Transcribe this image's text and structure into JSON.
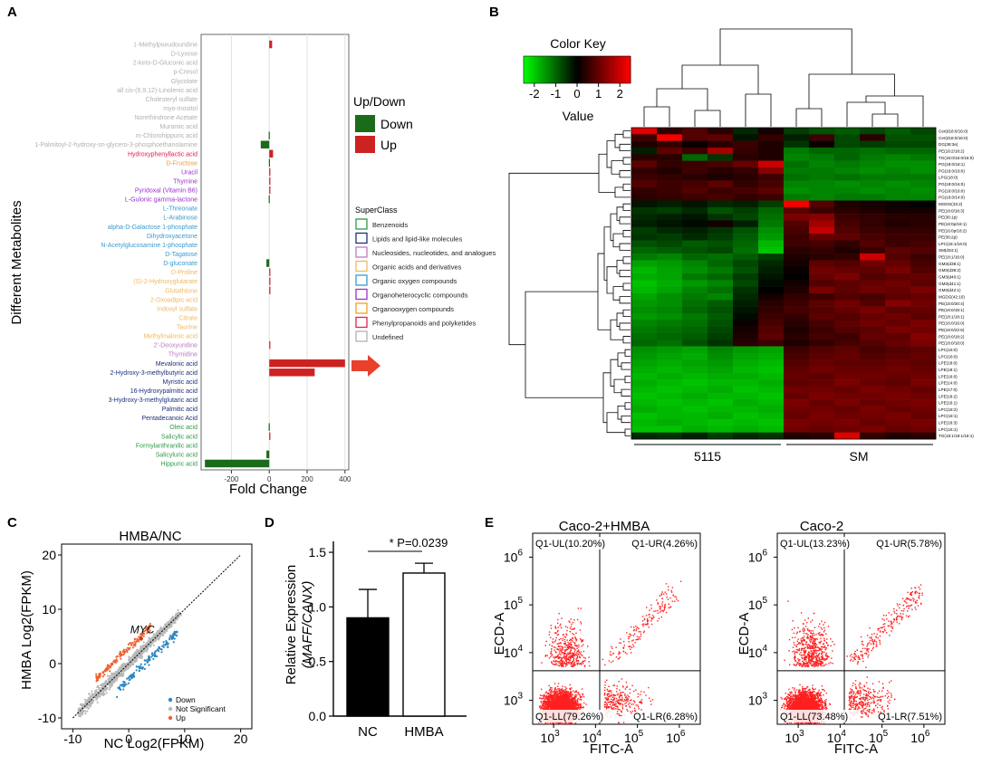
{
  "panels": {
    "a": "A",
    "b": "B",
    "c": "C",
    "d": "D",
    "e": "E"
  },
  "colors": {
    "down": "#1a6b1a",
    "up": "#cc2222",
    "arrow": "#e8402a",
    "scatter_down": "#2e86c1",
    "scatter_ns": "#b8b8b8",
    "scatter_up": "#f06030",
    "flow_dot": "#ff2020"
  },
  "chart_data": [
    {
      "id": "A",
      "type": "bar",
      "orientation": "horizontal",
      "xlabel": "Fold Change",
      "ylabel": "Different Metabolites",
      "xlim": [
        -360,
        420
      ],
      "xticks": [
        -200,
        0,
        200,
        400
      ],
      "categories": [
        "1-Methylpseudouridine",
        "D-Lyxose",
        "2-keto-D-Gluconic acid",
        "p-Cresol",
        "Glycolate",
        "all cis-(6,9,12)-Linolenic acid",
        "Cholesteryl sulfate",
        "myo-Inositol",
        "Norethindrone Acetate",
        "Muramic acid",
        "m-Chlorohippuric acid",
        "1-Palmitoyl-2-hydroxy-sn-glycero-3-phosphoethanolamine",
        "Hydroxyphenyllactic acid",
        "D-Fructose",
        "Uracil",
        "Thymine",
        "Pyridoxal (Vitamin B6)",
        "L-Gulonic gamma-lactone",
        "L-Threonate",
        "L-Arabinose",
        "alpha-D-Galactose 1-phosphate",
        "Dihydroxyacetone",
        "N-Acetylglucosamine 1-phosphate",
        "D-Tagatose",
        "D-gluconate",
        "D-Proline",
        "(S)-2-Hydroxyglutarate",
        "Glutathione",
        "2-Oxoadipic acid",
        "Indoxyl sulfate",
        "Citrate",
        "Taurine",
        "Methylmalonic acid",
        "2'-Deoxyuridine",
        "Thymidine",
        "Mevalonic acid",
        "2-Hydroxy-3-methylbutyric acid",
        "Myristic acid",
        "16-Hydroxypalmitic acid",
        "3-Hydroxy-3-methylglutaric acid",
        "Palmitic acid",
        "Pentadecanoic Acid",
        "Oleic acid",
        "Salicylic acid",
        "Formylanthranilic acid",
        "Salicyluric acid",
        "Hippuric acid"
      ],
      "values": [
        15,
        0,
        0,
        0,
        0,
        0,
        0,
        0,
        0,
        0,
        -3,
        -45,
        20,
        -2,
        4,
        4,
        3,
        -3,
        0,
        0,
        0,
        0,
        0,
        0,
        -15,
        3,
        3,
        3,
        0,
        0,
        0,
        0,
        0,
        2,
        0,
        400,
        240,
        0,
        0,
        0,
        0,
        0,
        -3,
        3,
        0,
        -15,
        -340
      ],
      "superclass": [
        "Undefined",
        "Undefined",
        "Undefined",
        "Undefined",
        "Undefined",
        "Undefined",
        "Undefined",
        "Undefined",
        "Undefined",
        "Undefined",
        "Undefined",
        "Undefined",
        "Phenylpropanoids and polyketides",
        "Organooxygen compounds",
        "Organoheterocyclic compounds",
        "Organoheterocyclic compounds",
        "Organoheterocyclic compounds",
        "Organoheterocyclic compounds",
        "Organic oxygen compounds",
        "Organic oxygen compounds",
        "Organic oxygen compounds",
        "Organic oxygen compounds",
        "Organic oxygen compounds",
        "Organic oxygen compounds",
        "Organic oxygen compounds",
        "Organic acids and derivatives",
        "Organic acids and derivatives",
        "Organic acids and derivatives",
        "Organic acids and derivatives",
        "Organic acids and derivatives",
        "Organic acids and derivatives",
        "Organic acids and derivatives",
        "Organic acids and derivatives",
        "Nucleosides, nucleotides, and analogues",
        "Nucleosides, nucleotides, and analogues",
        "Lipids and lipid-like molecules",
        "Lipids and lipid-like molecules",
        "Lipids and lipid-like molecules",
        "Lipids and lipid-like molecules",
        "Lipids and lipid-like molecules",
        "Lipids and lipid-like molecules",
        "Lipids and lipid-like molecules",
        "Benzenoids",
        "Benzenoids",
        "Benzenoids",
        "Benzenoids",
        "Benzenoids"
      ],
      "legend_updown": {
        "title": "Up/Down",
        "items": [
          "Down",
          "Up"
        ]
      },
      "legend_superclass": {
        "title": "SuperClass",
        "items": [
          "Benzenoids",
          "Lipids and lipid-like molecules",
          "Nucleosides, nucleotides, and analogues",
          "Organic acids and derivatives",
          "Organic oxygen compounds",
          "Organoheterocyclic compounds",
          "Organooxygen compounds",
          "Phenylpropanoids and polyketides",
          "Undefined"
        ],
        "colors": [
          "#2e9a44",
          "#1f2f7a",
          "#c07ac0",
          "#f0b860",
          "#3a9ad0",
          "#9a30d0",
          "#f0a020",
          "#e02050",
          "#b0b0b0"
        ]
      }
    },
    {
      "id": "B",
      "type": "heatmap",
      "color_key_title": "Color Key",
      "color_key_label": "Value",
      "color_key_ticks": [
        "-2",
        "-1",
        "0",
        "1",
        "2"
      ],
      "groups": [
        "5115",
        "SM"
      ],
      "rows": [
        "Cer(d18:0/16:0)",
        "Cer(d18:0/16:0)",
        "DG(38:3e)",
        "PE(18:2/18:2)",
        "TG(16:0/16:0/16:0)",
        "PG(18:0/18:1)",
        "PG(16:0/18:0)",
        "LPG(18:0)",
        "PG(18:0/16:0)",
        "PG(16:0/16:0)",
        "PG(16:0/14:0)",
        "MGDG(33:2)",
        "PE(18:0/18:3)",
        "PE(36:1p)",
        "PE(18:0p/18:1)",
        "PE(16:0p/18:2)",
        "PE(36:2p)",
        "LPC(18:1/16:0)",
        "SM(d34:1)",
        "PE(18:1/16:0)",
        "GM3(d38:1)",
        "GM3(d38:2)",
        "GM3(d40:1)",
        "GM3(d41:1)",
        "GM3(d42:1)",
        "MGDG(42:10)",
        "PE(18:0/20:4)",
        "PE(16:0/18:1)",
        "PE(18:1/18:1)",
        "PE(16:0/16:0)",
        "PE(18:0/22:6)",
        "PE(18:0/18:2)",
        "PE(18:0/18:0)",
        "LPC(16:0)",
        "LPC(18:0)",
        "LPE(18:0)",
        "LPE(18:1)",
        "LPE(16:0)",
        "LPE(14:0)",
        "LPE(17:0)",
        "LPE(18:2)",
        "LPE(16:1)",
        "LPC(18:2)",
        "LPC(18:1)",
        "LPE(18:3)",
        "LPC(16:1)",
        "TG(18:1/18:1/18:1)"
      ],
      "values": [
        [
          2.2,
          0.5,
          0.8,
          0.4,
          -0.4,
          0.2,
          -0.6,
          -0.8,
          -0.9,
          -0.7,
          -0.9,
          -0.7
        ],
        [
          0.6,
          2.4,
          0.8,
          0.9,
          -0.2,
          0.5,
          -0.3,
          0.6,
          -0.7,
          0.4,
          -0.8,
          -0.8
        ],
        [
          0.3,
          0.5,
          0.1,
          0.4,
          0.6,
          0.3,
          -0.5,
          0.1,
          -0.7,
          -0.6,
          -0.7,
          -0.7
        ],
        [
          -0.3,
          0.9,
          0.6,
          1.6,
          0.5,
          0.3,
          -1.2,
          -1.0,
          -1.0,
          -1.1,
          -1.0,
          -1.0
        ],
        [
          0.4,
          0.4,
          -1.0,
          -0.5,
          0.4,
          0.3,
          -1.3,
          -1.2,
          -1.0,
          -1.2,
          -1.3,
          -1.2
        ],
        [
          0.9,
          0.5,
          0.6,
          0.7,
          1.0,
          2.0,
          -1.1,
          -1.3,
          -1.2,
          -1.3,
          -1.4,
          -1.4
        ],
        [
          0.5,
          0.3,
          0.6,
          0.4,
          0.5,
          1.3,
          -1.2,
          -1.2,
          -1.3,
          -1.4,
          -1.3,
          -1.4
        ],
        [
          0.6,
          0.5,
          0.4,
          0.3,
          0.4,
          0.6,
          -1.1,
          -1.2,
          -1.1,
          -1.2,
          -1.2,
          -1.2
        ],
        [
          0.8,
          0.6,
          0.7,
          0.9,
          0.5,
          0.7,
          -1.3,
          -1.3,
          -1.4,
          -1.3,
          -1.4,
          -1.3
        ],
        [
          0.5,
          0.6,
          0.8,
          0.6,
          0.7,
          0.9,
          -1.4,
          -1.3,
          -1.3,
          -1.4,
          -1.3,
          -1.4
        ],
        [
          0.4,
          0.5,
          0.6,
          0.7,
          0.5,
          0.6,
          -1.2,
          -1.3,
          -1.2,
          -1.2,
          -1.3,
          -1.3
        ],
        [
          -0.2,
          -0.3,
          -0.2,
          -0.4,
          -0.3,
          -0.6,
          2.4,
          0.8,
          0.3,
          0.2,
          0.1,
          0.0
        ],
        [
          -0.5,
          -0.6,
          -0.4,
          -0.8,
          -0.6,
          -1.0,
          0.9,
          0.6,
          0.4,
          0.3,
          0.2,
          0.2
        ],
        [
          -0.4,
          -0.3,
          -0.2,
          -0.5,
          -0.7,
          -1.1,
          1.2,
          1.3,
          0.6,
          0.5,
          0.4,
          0.4
        ],
        [
          -0.3,
          -0.2,
          -0.1,
          0.2,
          -0.3,
          -1.2,
          0.8,
          1.6,
          0.7,
          0.5,
          0.3,
          0.4
        ],
        [
          -0.6,
          -0.4,
          -0.3,
          -0.5,
          -0.8,
          -1.4,
          0.7,
          1.9,
          0.8,
          0.6,
          0.5,
          0.5
        ],
        [
          -0.5,
          -0.6,
          -0.4,
          -0.6,
          -0.9,
          -1.5,
          0.6,
          1.0,
          0.9,
          0.7,
          0.6,
          0.6
        ],
        [
          -0.8,
          -0.7,
          -0.9,
          -0.8,
          -1.0,
          -1.8,
          0.6,
          0.7,
          0.5,
          0.8,
          0.6,
          0.7
        ],
        [
          -1.0,
          -0.9,
          -0.8,
          -0.7,
          -1.1,
          -1.9,
          0.4,
          0.5,
          0.3,
          0.6,
          0.9,
          0.8
        ],
        [
          -1.2,
          -1.3,
          -1.0,
          -1.1,
          -0.9,
          -0.6,
          0.3,
          0.4,
          0.5,
          2.0,
          0.8,
          0.6
        ],
        [
          -1.6,
          -1.5,
          -1.3,
          -1.0,
          -0.7,
          -0.4,
          0.2,
          0.9,
          0.8,
          1.1,
          1.0,
          0.7
        ],
        [
          -1.8,
          -1.6,
          -1.4,
          -1.2,
          -0.8,
          -0.3,
          0.1,
          1.1,
          1.0,
          0.9,
          1.2,
          0.8
        ],
        [
          -1.7,
          -1.6,
          -1.2,
          -1.0,
          -0.6,
          -0.2,
          0.0,
          1.0,
          1.2,
          0.8,
          0.9,
          1.0
        ],
        [
          -1.9,
          -1.7,
          -1.5,
          -1.3,
          -0.7,
          -0.1,
          0.2,
          0.8,
          0.9,
          1.0,
          1.1,
          0.9
        ],
        [
          -1.8,
          -1.6,
          -1.3,
          -1.1,
          -0.5,
          0.0,
          0.3,
          1.2,
          0.9,
          1.1,
          1.0,
          1.2
        ],
        [
          -1.6,
          -1.4,
          -1.2,
          -1.3,
          -0.4,
          0.2,
          0.5,
          0.6,
          0.8,
          0.7,
          0.9,
          1.0
        ],
        [
          -1.5,
          -1.4,
          -1.1,
          -0.9,
          -0.3,
          0.4,
          0.6,
          0.9,
          1.1,
          0.8,
          1.3,
          1.1
        ],
        [
          -1.4,
          -1.3,
          -1.0,
          -0.8,
          -0.2,
          0.5,
          0.7,
          0.8,
          1.0,
          1.2,
          0.9,
          1.0
        ],
        [
          -1.5,
          -1.4,
          -1.2,
          -0.9,
          -0.1,
          0.6,
          0.5,
          0.9,
          0.8,
          1.0,
          1.1,
          0.9
        ],
        [
          -1.3,
          -1.2,
          -1.1,
          -0.8,
          0.1,
          0.7,
          0.4,
          0.7,
          0.9,
          1.1,
          1.0,
          1.2
        ],
        [
          -1.2,
          -1.1,
          -1.0,
          -0.7,
          0.2,
          0.8,
          0.3,
          0.6,
          0.8,
          0.9,
          1.2,
          1.1
        ],
        [
          -1.1,
          -1.0,
          -0.9,
          -0.6,
          0.3,
          0.9,
          0.4,
          0.7,
          0.6,
          1.0,
          0.9,
          1.3
        ],
        [
          -1.0,
          -1.1,
          -0.8,
          -0.5,
          0.4,
          0.6,
          0.3,
          0.5,
          0.7,
          0.8,
          1.0,
          1.2
        ],
        [
          -1.4,
          -1.5,
          -1.6,
          -1.3,
          -1.5,
          -1.6,
          0.6,
          0.8,
          0.9,
          0.7,
          0.8,
          0.9
        ],
        [
          -1.5,
          -1.6,
          -1.7,
          -1.4,
          -1.6,
          -1.7,
          0.7,
          0.9,
          1.0,
          0.8,
          0.9,
          1.0
        ],
        [
          -1.6,
          -1.7,
          -1.6,
          -1.5,
          -1.7,
          -1.8,
          0.8,
          1.0,
          0.9,
          0.9,
          1.0,
          0.9
        ],
        [
          -1.7,
          -1.8,
          -1.7,
          -1.6,
          -1.8,
          -1.9,
          0.9,
          1.1,
          1.0,
          1.0,
          1.1,
          1.0
        ],
        [
          -1.8,
          -1.7,
          -1.8,
          -1.7,
          -1.7,
          -1.8,
          1.0,
          0.9,
          1.1,
          1.1,
          1.0,
          1.1
        ],
        [
          -1.7,
          -1.8,
          -1.9,
          -1.8,
          -1.8,
          -1.7,
          0.9,
          1.0,
          1.2,
          1.0,
          0.9,
          1.2
        ],
        [
          -1.8,
          -1.9,
          -1.8,
          -1.7,
          -1.9,
          -1.8,
          1.1,
          1.1,
          1.0,
          1.2,
          1.1,
          1.0
        ],
        [
          -1.9,
          -1.8,
          -1.7,
          -1.8,
          -1.8,
          -1.9,
          1.0,
          1.2,
          1.1,
          1.1,
          1.2,
          1.1
        ],
        [
          -1.8,
          -1.9,
          -1.8,
          -1.9,
          -1.7,
          -1.8,
          1.2,
          1.0,
          1.2,
          1.0,
          1.1,
          1.2
        ],
        [
          -1.7,
          -1.8,
          -1.9,
          -1.8,
          -1.8,
          -1.7,
          1.1,
          1.1,
          1.0,
          1.2,
          1.0,
          1.1
        ],
        [
          -1.9,
          -1.8,
          -1.8,
          -1.7,
          -1.9,
          -1.8,
          1.0,
          1.2,
          1.1,
          1.1,
          1.2,
          1.0
        ],
        [
          -1.8,
          -1.7,
          -1.8,
          -1.9,
          -1.8,
          -1.9,
          1.2,
          1.1,
          1.2,
          1.0,
          1.1,
          1.2
        ],
        [
          -1.9,
          -1.9,
          -1.7,
          -1.8,
          -1.7,
          -1.8,
          1.1,
          1.0,
          1.1,
          1.2,
          1.0,
          1.1
        ],
        [
          -0.4,
          -0.5,
          -0.3,
          -0.6,
          -0.4,
          -0.5,
          0.3,
          0.4,
          2.2,
          0.5,
          0.3,
          0.4
        ]
      ]
    },
    {
      "id": "C",
      "type": "scatter",
      "title": "HMBA/NC",
      "xlabel": "NC Log2(FPKM)",
      "ylabel": "HMBA Log2(FPKM)",
      "xlim": [
        -12,
        22
      ],
      "ylim": [
        -12,
        22
      ],
      "xticks": [
        -10,
        0,
        10,
        20
      ],
      "yticks": [
        -10,
        0,
        10,
        20
      ],
      "annotation": {
        "label": "MYC",
        "x": 2.2,
        "y": 4.6
      },
      "legend": [
        "Down",
        "Not Significant",
        "Up"
      ],
      "series": [
        {
          "name": "Not Significant",
          "n_points": 1100,
          "x_range": [
            -9,
            9
          ],
          "spread": 1.0
        },
        {
          "name": "Down",
          "n_points": 140,
          "x_range": [
            -2,
            9
          ],
          "offset": -2.5
        },
        {
          "name": "Up",
          "n_points": 140,
          "x_range": [
            -6,
            4
          ],
          "offset": 2.5
        }
      ]
    },
    {
      "id": "D",
      "type": "bar",
      "categories": [
        "NC",
        "HMBA"
      ],
      "values": [
        0.9,
        1.31
      ],
      "errors": [
        0.26,
        0.09
      ],
      "ylim": [
        0,
        1.6
      ],
      "yticks": [
        "0.0",
        "0.5",
        "1.0",
        "1.5"
      ],
      "ylabel": "Relative Expression",
      "ylabel2": "(MAFF/CANX)",
      "significance": "* P=0.0239"
    },
    {
      "id": "E1",
      "type": "scatter",
      "title": "Caco-2+HMBA",
      "xlabel": "FITC-A",
      "ylabel": "ECD-A",
      "log_range": [
        2.5,
        6.5
      ],
      "gate": [
        4.1,
        3.62
      ],
      "quadrants": [
        "Q1-UL(10.20%)",
        "Q1-UR(4.26%)",
        "Q1-LL(79.26%)",
        "Q1-LR(6.28%)"
      ],
      "quadrant_fractions": [
        0.102,
        0.0426,
        0.7926,
        0.0628
      ],
      "n_events": 4000
    },
    {
      "id": "E2",
      "type": "scatter",
      "title": "Caco-2",
      "xlabel": "FITC-A",
      "ylabel": "ECD-A",
      "log_range": [
        2.5,
        6.5
      ],
      "gate": [
        4.1,
        3.62
      ],
      "quadrants": [
        "Q1-UL(13.23%)",
        "Q1-UR(5.78%)",
        "Q1-LL(73.48%)",
        "Q1-LR(7.51%)"
      ],
      "quadrant_fractions": [
        0.1323,
        0.0578,
        0.7348,
        0.0751
      ],
      "n_events": 4000
    }
  ]
}
